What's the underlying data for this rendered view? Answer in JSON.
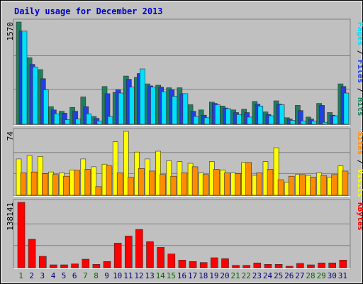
{
  "colors": {
    "background": "#c0c0c0",
    "frame": "#ffffff",
    "grid": "#808080",
    "hits": "#1f8060",
    "files": "#2040e0",
    "pages": "#00e0ff",
    "visits": "#ffff00",
    "sites": "#ff8c00",
    "kbytes": "#ff0000",
    "weekday_label": "#000080",
    "weekend_label": "#006600"
  },
  "chart_data": {
    "type": "bar",
    "title": "Daily usage for December 2013",
    "categories": [
      "1",
      "2",
      "3",
      "4",
      "5",
      "6",
      "7",
      "8",
      "9",
      "10",
      "11",
      "12",
      "13",
      "14",
      "15",
      "16",
      "17",
      "18",
      "19",
      "20",
      "21",
      "22",
      "23",
      "24",
      "25",
      "26",
      "27",
      "28",
      "29",
      "30",
      "31"
    ],
    "weekend_days": [
      "1",
      "7",
      "8",
      "14",
      "15",
      "21",
      "22",
      "28",
      "29"
    ],
    "panels": [
      {
        "peak_label": "1570",
        "ylim": [
          0,
          1570
        ],
        "axis_legend": [
          "Pages",
          " / ",
          "Files",
          " / ",
          "Hits"
        ],
        "series": [
          {
            "name": "Hits",
            "values": [
              1570,
              1020,
              840,
              270,
              200,
              260,
              420,
              120,
              580,
              490,
              740,
              720,
              620,
              600,
              560,
              560,
              300,
              220,
              340,
              280,
              220,
              230,
              350,
              190,
              360,
              100,
              290,
              110,
              320,
              180,
              620
            ]
          },
          {
            "name": "Files",
            "values": [
              1430,
              920,
              700,
              220,
              170,
              200,
              270,
              90,
              470,
              530,
              690,
              780,
              590,
              570,
              530,
              470,
              200,
              140,
              320,
              250,
              180,
              180,
              310,
              150,
              310,
              80,
              210,
              80,
              290,
              140,
              580
            ]
          },
          {
            "name": "Pages",
            "values": [
              1430,
              880,
              530,
              160,
              70,
              80,
              160,
              50,
              120,
              480,
              570,
              850,
              570,
              500,
              430,
              470,
              120,
              100,
              300,
              240,
              150,
              110,
              280,
              130,
              300,
              60,
              50,
              50,
              30,
              130,
              480
            ]
          }
        ]
      },
      {
        "peak_label": "74",
        "ylim": [
          0,
          74
        ],
        "axis_legend": [
          "Sites",
          " / ",
          "Visits"
        ],
        "series": [
          {
            "name": "Visits",
            "values": [
              42,
              46,
              45,
              27,
              26,
              29,
              42,
              33,
              36,
              62,
              74,
              50,
              42,
              51,
              40,
              39,
              37,
              26,
              39,
              29,
              26,
              38,
              23,
              39,
              55,
              15,
              24,
              23,
              26,
              21,
              34
            ]
          },
          {
            "name": "Sites",
            "values": [
              26,
              27,
              25,
              24,
              22,
              29,
              30,
              10,
              34,
              26,
              21,
              31,
              28,
              24,
              22,
              26,
              33,
              24,
              30,
              26,
              25,
              38,
              26,
              30,
              18,
              22,
              24,
              21,
              23,
              24,
              28
            ]
          }
        ]
      },
      {
        "peak_label": "138141",
        "ylim": [
          0,
          138141
        ],
        "axis_legend": [
          "KBytes"
        ],
        "series": [
          {
            "name": "KBytes",
            "values": [
              138141,
              60000,
              24000,
              6000,
              6000,
              8000,
              18000,
              7000,
              13000,
              52000,
              67000,
              81000,
              55000,
              43000,
              29000,
              16000,
              13000,
              11000,
              21000,
              19000,
              5000,
              5000,
              10000,
              7000,
              7000,
              3000,
              9000,
              6000,
              10000,
              10000,
              16000
            ]
          }
        ]
      }
    ]
  }
}
